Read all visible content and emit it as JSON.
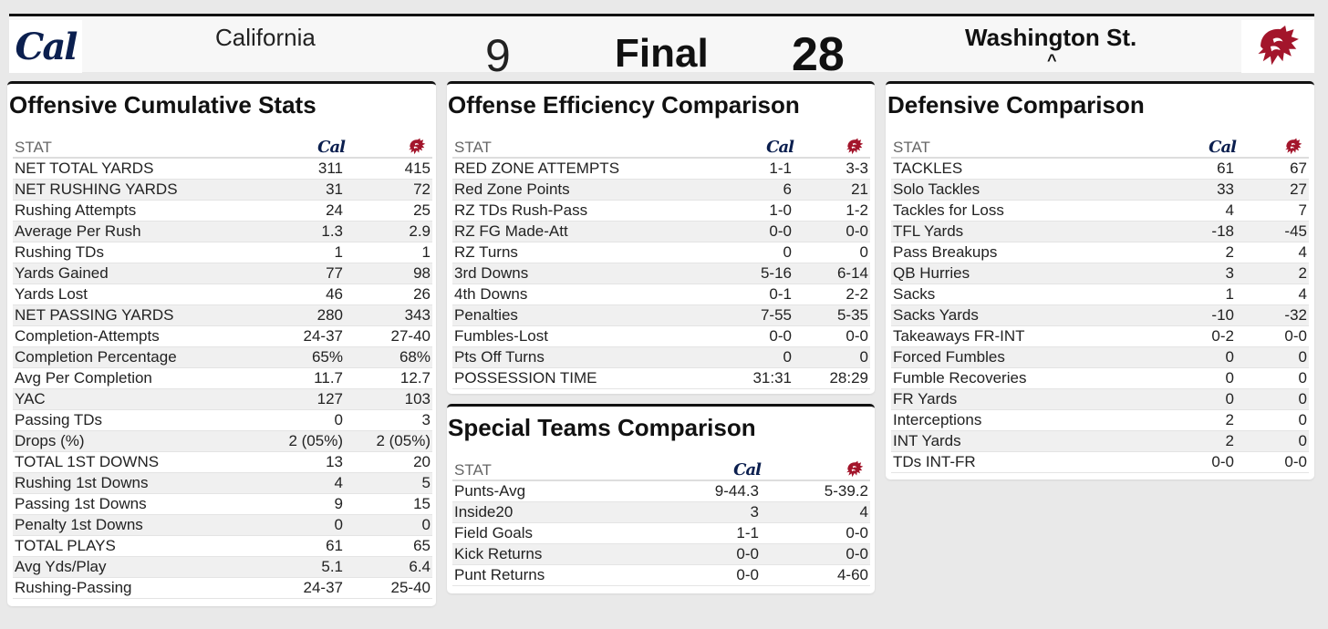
{
  "colors": {
    "cal_navy": "#0b1f4f",
    "wsu_crimson": "#a3152b"
  },
  "header": {
    "away_team": "California",
    "away_score": "9",
    "status": "Final",
    "home_score": "28",
    "home_team": "Washington St.",
    "winner_marker": "^",
    "cal_logo_text": "Cal"
  },
  "stat_header": "STAT",
  "offensive": {
    "title": "Offensive Cumulative Stats",
    "rows": [
      [
        "NET TOTAL YARDS",
        "311",
        "415"
      ],
      [
        "NET RUSHING YARDS",
        "31",
        "72"
      ],
      [
        "Rushing Attempts",
        "24",
        "25"
      ],
      [
        "Average Per Rush",
        "1.3",
        "2.9"
      ],
      [
        "Rushing TDs",
        "1",
        "1"
      ],
      [
        "Yards Gained",
        "77",
        "98"
      ],
      [
        "Yards Lost",
        "46",
        "26"
      ],
      [
        "NET PASSING YARDS",
        "280",
        "343"
      ],
      [
        "Completion-Attempts",
        "24-37",
        "27-40"
      ],
      [
        "Completion Percentage",
        "65%",
        "68%"
      ],
      [
        "Avg Per Completion",
        "11.7",
        "12.7"
      ],
      [
        "YAC",
        "127",
        "103"
      ],
      [
        "Passing TDs",
        "0",
        "3"
      ],
      [
        "Drops (%)",
        "2 (05%)",
        "2 (05%)"
      ],
      [
        "TOTAL 1ST DOWNS",
        "13",
        "20"
      ],
      [
        "Rushing 1st Downs",
        "4",
        "5"
      ],
      [
        "Passing 1st Downs",
        "9",
        "15"
      ],
      [
        "Penalty 1st Downs",
        "0",
        "0"
      ],
      [
        "TOTAL PLAYS",
        "61",
        "65"
      ],
      [
        "Avg Yds/Play",
        "5.1",
        "6.4"
      ],
      [
        "Rushing-Passing",
        "24-37",
        "25-40"
      ]
    ]
  },
  "efficiency": {
    "title": "Offense Efficiency Comparison",
    "rows": [
      [
        "RED ZONE ATTEMPTS",
        "1-1",
        "3-3"
      ],
      [
        "Red Zone Points",
        "6",
        "21"
      ],
      [
        "RZ TDs Rush-Pass",
        "1-0",
        "1-2"
      ],
      [
        "RZ FG Made-Att",
        "0-0",
        "0-0"
      ],
      [
        "RZ Turns",
        "0",
        "0"
      ],
      [
        "3rd Downs",
        "5-16",
        "6-14"
      ],
      [
        "4th Downs",
        "0-1",
        "2-2"
      ],
      [
        "Penalties",
        "7-55",
        "5-35"
      ],
      [
        "Fumbles-Lost",
        "0-0",
        "0-0"
      ],
      [
        "Pts Off Turns",
        "0",
        "0"
      ],
      [
        "POSSESSION TIME",
        "31:31",
        "28:29"
      ]
    ]
  },
  "special": {
    "title": "Special Teams Comparison",
    "rows": [
      [
        "Punts-Avg",
        "9-44.3",
        "5-39.2"
      ],
      [
        "Inside20",
        "3",
        "4"
      ],
      [
        "Field Goals",
        "1-1",
        "0-0"
      ],
      [
        "Kick Returns",
        "0-0",
        "0-0"
      ],
      [
        "Punt Returns",
        "0-0",
        "4-60"
      ]
    ]
  },
  "defensive": {
    "title": "Defensive Comparison",
    "rows": [
      [
        "TACKLES",
        "61",
        "67"
      ],
      [
        "Solo Tackles",
        "33",
        "27"
      ],
      [
        "Tackles for Loss",
        "4",
        "7"
      ],
      [
        "TFL Yards",
        "-18",
        "-45"
      ],
      [
        "Pass Breakups",
        "2",
        "4"
      ],
      [
        "QB Hurries",
        "3",
        "2"
      ],
      [
        "Sacks",
        "1",
        "4"
      ],
      [
        "Sacks Yards",
        "-10",
        "-32"
      ],
      [
        "Takeaways FR-INT",
        "0-2",
        "0-0"
      ],
      [
        "Forced Fumbles",
        "0",
        "0"
      ],
      [
        "Fumble Recoveries",
        "0",
        "0"
      ],
      [
        "FR Yards",
        "0",
        "0"
      ],
      [
        "Interceptions",
        "2",
        "0"
      ],
      [
        "INT Yards",
        "2",
        "0"
      ],
      [
        "TDs INT-FR",
        "0-0",
        "0-0"
      ]
    ]
  }
}
